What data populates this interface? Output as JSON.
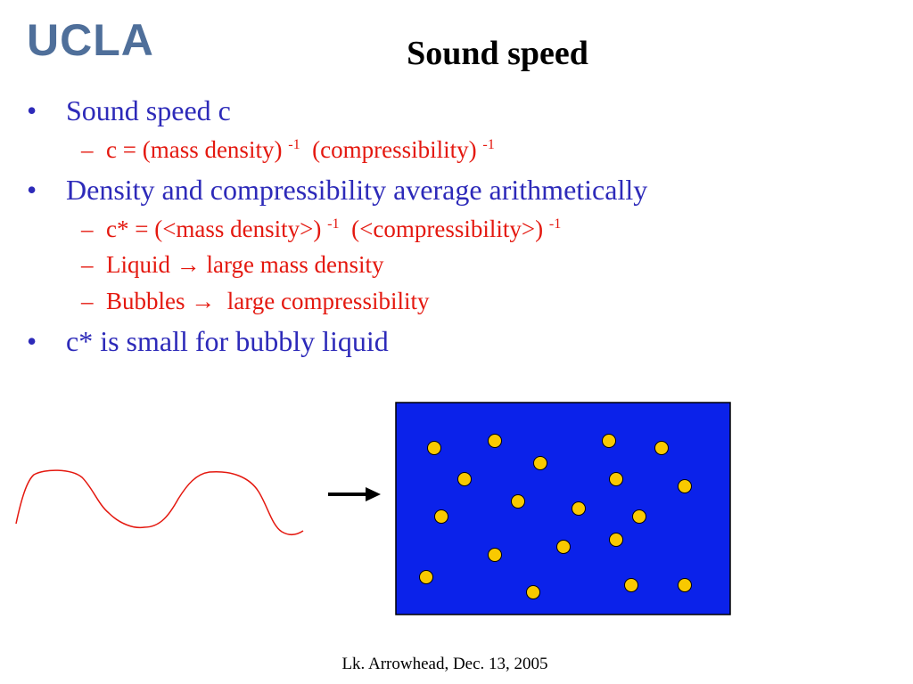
{
  "header": {
    "logo_text": "UCLA",
    "title": "Sound speed"
  },
  "bullets": {
    "b1": "Sound speed c",
    "b1_sub1": {
      "pre": "c = (mass density) ",
      "exp1": "-1",
      "mid": "  (compressibility) ",
      "exp2": "-1"
    },
    "b2": "Density and compressibility average arithmetically",
    "b2_sub1": {
      "pre": "c* = (<mass density>) ",
      "exp1": "-1",
      "mid": "  (<compressibility>) ",
      "exp2": "-1"
    },
    "b2_sub2": "Liquid → large mass density",
    "b2_sub3": "Bubbles →  large compressibility",
    "b3": "c* is small for bubbly liquid"
  },
  "footer": {
    "text": "Lk. Arrowhead, Dec. 13, 2005"
  },
  "colors": {
    "logo": "#4f6f9a",
    "bullet_blue": "#2d2ab9",
    "sub_red": "#e4180f",
    "box_blue": "#0b22ea",
    "bubble_yellow": "#f9c900",
    "wave_red": "#e4180f"
  },
  "figure": {
    "bubble_count": 21
  }
}
